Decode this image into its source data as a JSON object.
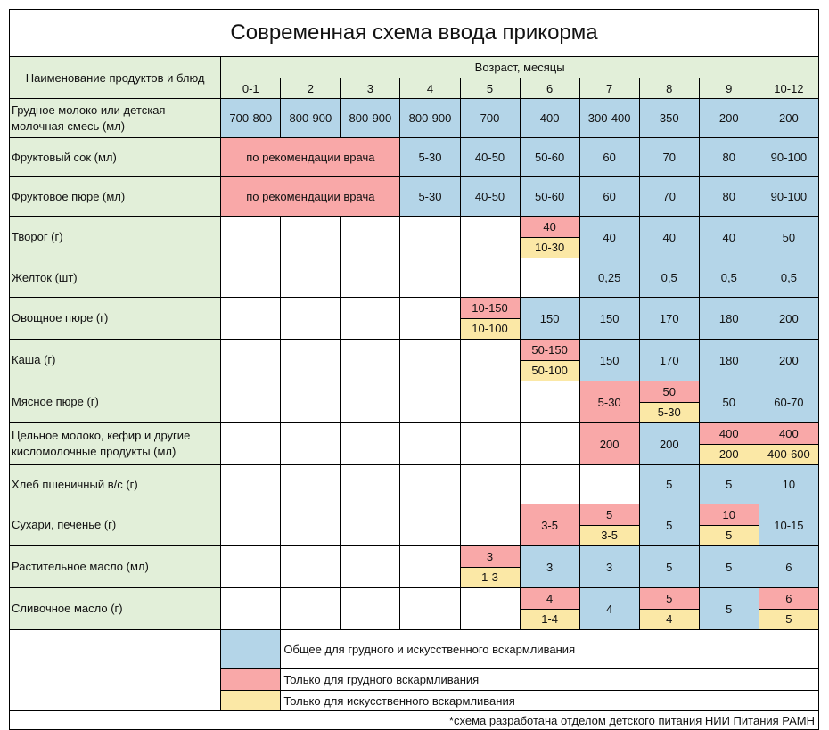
{
  "title": "Современная схема ввода прикорма",
  "header": {
    "name_col": "Наименование продуктов и блюд",
    "age_label": "Возраст, месяцы",
    "ages": [
      "0-1",
      "2",
      "3",
      "4",
      "5",
      "6",
      "7",
      "8",
      "9",
      "10-12"
    ]
  },
  "colors": {
    "blue": "#b4d5e8",
    "pink": "#f9a8a8",
    "yellow": "#fbe8a6",
    "green": "#e2efd9"
  },
  "rows": [
    {
      "label": "Грудное молоко или детская молочная смесь (мл)",
      "cells": [
        {
          "v": "700-800",
          "c": "blue"
        },
        {
          "v": "800-900",
          "c": "blue"
        },
        {
          "v": "800-900",
          "c": "blue"
        },
        {
          "v": "800-900",
          "c": "blue"
        },
        {
          "v": "700",
          "c": "blue"
        },
        {
          "v": "400",
          "c": "blue"
        },
        {
          "v": "300-400",
          "c": "blue"
        },
        {
          "v": "350",
          "c": "blue"
        },
        {
          "v": "200",
          "c": "blue"
        },
        {
          "v": "200",
          "c": "blue"
        }
      ]
    },
    {
      "label": "Фруктовый сок (мл)",
      "cells": [
        {
          "v": "по рекомендации врача",
          "c": "pink",
          "span": 3
        },
        {
          "v": "5-30",
          "c": "blue"
        },
        {
          "v": "40-50",
          "c": "blue"
        },
        {
          "v": "50-60",
          "c": "blue"
        },
        {
          "v": "60",
          "c": "blue"
        },
        {
          "v": "70",
          "c": "blue"
        },
        {
          "v": "80",
          "c": "blue"
        },
        {
          "v": "90-100",
          "c": "blue"
        }
      ]
    },
    {
      "label": "Фруктовое пюре (мл)",
      "cells": [
        {
          "v": "по рекомендации врача",
          "c": "pink",
          "span": 3
        },
        {
          "v": "5-30",
          "c": "blue"
        },
        {
          "v": "40-50",
          "c": "blue"
        },
        {
          "v": "50-60",
          "c": "blue"
        },
        {
          "v": "60",
          "c": "blue"
        },
        {
          "v": "70",
          "c": "blue"
        },
        {
          "v": "80",
          "c": "blue"
        },
        {
          "v": "90-100",
          "c": "blue"
        }
      ]
    },
    {
      "label": "Творог (г)",
      "cells": [
        {
          "v": "",
          "c": "white"
        },
        {
          "v": "",
          "c": "white"
        },
        {
          "v": "",
          "c": "white"
        },
        {
          "v": "",
          "c": "white"
        },
        {
          "v": "",
          "c": "white"
        },
        {
          "top": "40",
          "bottom": "10-30"
        },
        {
          "v": "40",
          "c": "blue"
        },
        {
          "v": "40",
          "c": "blue"
        },
        {
          "v": "40",
          "c": "blue"
        },
        {
          "v": "50",
          "c": "blue"
        }
      ]
    },
    {
      "label": "Желток (шт)",
      "cells": [
        {
          "v": "",
          "c": "white"
        },
        {
          "v": "",
          "c": "white"
        },
        {
          "v": "",
          "c": "white"
        },
        {
          "v": "",
          "c": "white"
        },
        {
          "v": "",
          "c": "white"
        },
        {
          "v": "",
          "c": "white"
        },
        {
          "v": "0,25",
          "c": "blue"
        },
        {
          "v": "0,5",
          "c": "blue"
        },
        {
          "v": "0,5",
          "c": "blue"
        },
        {
          "v": "0,5",
          "c": "blue"
        }
      ]
    },
    {
      "label": "Овощное пюре (г)",
      "cells": [
        {
          "v": "",
          "c": "white"
        },
        {
          "v": "",
          "c": "white"
        },
        {
          "v": "",
          "c": "white"
        },
        {
          "v": "",
          "c": "white"
        },
        {
          "top": "10-150",
          "bottom": "10-100"
        },
        {
          "v": "150",
          "c": "blue"
        },
        {
          "v": "150",
          "c": "blue"
        },
        {
          "v": "170",
          "c": "blue"
        },
        {
          "v": "180",
          "c": "blue"
        },
        {
          "v": "200",
          "c": "blue"
        }
      ]
    },
    {
      "label": "Каша (г)",
      "cells": [
        {
          "v": "",
          "c": "white"
        },
        {
          "v": "",
          "c": "white"
        },
        {
          "v": "",
          "c": "white"
        },
        {
          "v": "",
          "c": "white"
        },
        {
          "v": "",
          "c": "white"
        },
        {
          "top": "50-150",
          "bottom": "50-100"
        },
        {
          "v": "150",
          "c": "blue"
        },
        {
          "v": "170",
          "c": "blue"
        },
        {
          "v": "180",
          "c": "blue"
        },
        {
          "v": "200",
          "c": "blue"
        }
      ]
    },
    {
      "label": "Мясное пюре (г)",
      "cells": [
        {
          "v": "",
          "c": "white"
        },
        {
          "v": "",
          "c": "white"
        },
        {
          "v": "",
          "c": "white"
        },
        {
          "v": "",
          "c": "white"
        },
        {
          "v": "",
          "c": "white"
        },
        {
          "v": "",
          "c": "white"
        },
        {
          "v": "5-30",
          "c": "pink"
        },
        {
          "top": "50",
          "bottom": "5-30"
        },
        {
          "v": "50",
          "c": "blue"
        },
        {
          "v": "60-70",
          "c": "blue"
        }
      ]
    },
    {
      "label": "Цельное молоко, кефир и другие кисломолочные продукты (мл)",
      "cells": [
        {
          "v": "",
          "c": "white"
        },
        {
          "v": "",
          "c": "white"
        },
        {
          "v": "",
          "c": "white"
        },
        {
          "v": "",
          "c": "white"
        },
        {
          "v": "",
          "c": "white"
        },
        {
          "v": "",
          "c": "white"
        },
        {
          "v": "200",
          "c": "pink"
        },
        {
          "v": "200",
          "c": "blue"
        },
        {
          "top": "400",
          "bottom": "200"
        },
        {
          "top": "400",
          "bottom": "400-600"
        }
      ]
    },
    {
      "label": "Хлеб пшеничный в/с (г)",
      "cells": [
        {
          "v": "",
          "c": "white"
        },
        {
          "v": "",
          "c": "white"
        },
        {
          "v": "",
          "c": "white"
        },
        {
          "v": "",
          "c": "white"
        },
        {
          "v": "",
          "c": "white"
        },
        {
          "v": "",
          "c": "white"
        },
        {
          "v": "",
          "c": "white"
        },
        {
          "v": "5",
          "c": "blue"
        },
        {
          "v": "5",
          "c": "blue"
        },
        {
          "v": "10",
          "c": "blue"
        }
      ]
    },
    {
      "label": "Сухари, печенье (г)",
      "cells": [
        {
          "v": "",
          "c": "white"
        },
        {
          "v": "",
          "c": "white"
        },
        {
          "v": "",
          "c": "white"
        },
        {
          "v": "",
          "c": "white"
        },
        {
          "v": "",
          "c": "white"
        },
        {
          "v": "3-5",
          "c": "pink"
        },
        {
          "top": "5",
          "bottom": "3-5"
        },
        {
          "v": "5",
          "c": "blue"
        },
        {
          "top": "10",
          "bottom": "5"
        },
        {
          "v": "10-15",
          "c": "blue"
        }
      ]
    },
    {
      "label": "Растительное масло (мл)",
      "cells": [
        {
          "v": "",
          "c": "white"
        },
        {
          "v": "",
          "c": "white"
        },
        {
          "v": "",
          "c": "white"
        },
        {
          "v": "",
          "c": "white"
        },
        {
          "top": "3",
          "bottom": "1-3"
        },
        {
          "v": "3",
          "c": "blue"
        },
        {
          "v": "3",
          "c": "blue"
        },
        {
          "v": "5",
          "c": "blue"
        },
        {
          "v": "5",
          "c": "blue"
        },
        {
          "v": "6",
          "c": "blue"
        }
      ]
    },
    {
      "label": "Сливочное масло (г)",
      "cells": [
        {
          "v": "",
          "c": "white"
        },
        {
          "v": "",
          "c": "white"
        },
        {
          "v": "",
          "c": "white"
        },
        {
          "v": "",
          "c": "white"
        },
        {
          "v": "",
          "c": "white"
        },
        {
          "top": "4",
          "bottom": "1-4"
        },
        {
          "v": "4",
          "c": "blue"
        },
        {
          "top": "5",
          "bottom": "4"
        },
        {
          "v": "5",
          "c": "blue"
        },
        {
          "top": "6",
          "bottom": "5"
        }
      ]
    }
  ],
  "legend": [
    {
      "c": "blue",
      "text": "Общее для грудного и искусственного вскармливания"
    },
    {
      "c": "pink",
      "text": "Только для грудного вскармливания"
    },
    {
      "c": "yellow",
      "text": "Только для искусственного вскармливания"
    }
  ],
  "footnote": "*схема разработана отделом детского питания НИИ Питания РАМН"
}
